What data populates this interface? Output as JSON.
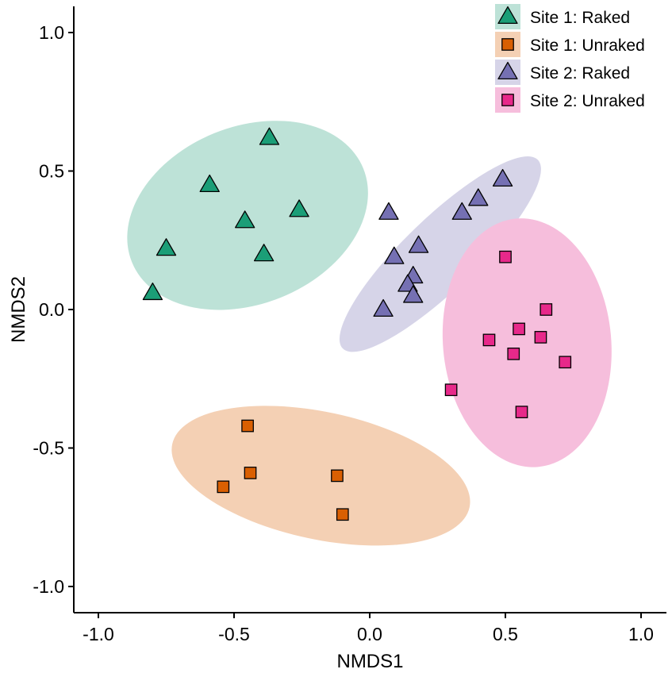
{
  "chart_data": {
    "type": "scatter",
    "title": "",
    "xlabel": "NMDS1",
    "ylabel": "NMDS2",
    "xlim": [
      -1.1,
      1.1
    ],
    "ylim": [
      -1.1,
      1.1
    ],
    "xticks": [
      -1.0,
      -0.5,
      0.0,
      0.5,
      1.0
    ],
    "yticks": [
      -1.0,
      -0.5,
      0.0,
      0.5,
      1.0
    ],
    "xtick_labels": [
      "-1.0",
      "-0.5",
      "0.0",
      "0.5",
      "1.0"
    ],
    "ytick_labels": [
      "-1.0",
      "-0.5",
      "0.0",
      "0.5",
      "1.0"
    ],
    "grid": false,
    "legend_position": "top-right",
    "series": [
      {
        "name": "Site 1: Raked",
        "marker": "triangle",
        "color": "#1b9e77",
        "ellipse_color": "#bde2d7",
        "ellipse": {
          "cx": -0.45,
          "cy": 0.34,
          "rx": 0.46,
          "ry": 0.32,
          "angle_deg": 22
        },
        "points": [
          [
            -0.37,
            0.62
          ],
          [
            -0.59,
            0.45
          ],
          [
            -0.46,
            0.32
          ],
          [
            -0.26,
            0.36
          ],
          [
            -0.75,
            0.22
          ],
          [
            -0.39,
            0.2
          ],
          [
            -0.8,
            0.06
          ]
        ]
      },
      {
        "name": "Site 1: Unraked",
        "marker": "square",
        "color": "#d95f02",
        "ellipse_color": "#f4d0b4",
        "ellipse": {
          "cx": -0.18,
          "cy": -0.6,
          "rx": 0.56,
          "ry": 0.23,
          "angle_deg": -12
        },
        "points": [
          [
            -0.45,
            -0.42
          ],
          [
            -0.54,
            -0.64
          ],
          [
            -0.44,
            -0.59
          ],
          [
            -0.12,
            -0.6
          ],
          [
            -0.1,
            -0.74
          ]
        ]
      },
      {
        "name": "Site 2: Raked",
        "marker": "triangle",
        "color": "#7570b3",
        "ellipse_color": "#d6d4e8",
        "ellipse": {
          "cx": 0.26,
          "cy": 0.2,
          "rx": 0.5,
          "ry": 0.13,
          "angle_deg": 44
        },
        "points": [
          [
            0.49,
            0.47
          ],
          [
            0.4,
            0.4
          ],
          [
            0.34,
            0.35
          ],
          [
            0.07,
            0.35
          ],
          [
            0.18,
            0.23
          ],
          [
            0.09,
            0.19
          ],
          [
            0.16,
            0.12
          ],
          [
            0.14,
            0.09
          ],
          [
            0.16,
            0.05
          ],
          [
            0.05,
            0.0
          ]
        ]
      },
      {
        "name": "Site 2: Unraked",
        "marker": "square",
        "color": "#e7298a",
        "ellipse_color": "#f6bedc",
        "ellipse": {
          "cx": 0.58,
          "cy": -0.12,
          "rx": 0.31,
          "ry": 0.45,
          "angle_deg": 5
        },
        "points": [
          [
            0.5,
            0.19
          ],
          [
            0.65,
            0.0
          ],
          [
            0.55,
            -0.07
          ],
          [
            0.44,
            -0.11
          ],
          [
            0.63,
            -0.1
          ],
          [
            0.53,
            -0.16
          ],
          [
            0.72,
            -0.19
          ],
          [
            0.3,
            -0.29
          ],
          [
            0.56,
            -0.37
          ]
        ]
      }
    ]
  }
}
